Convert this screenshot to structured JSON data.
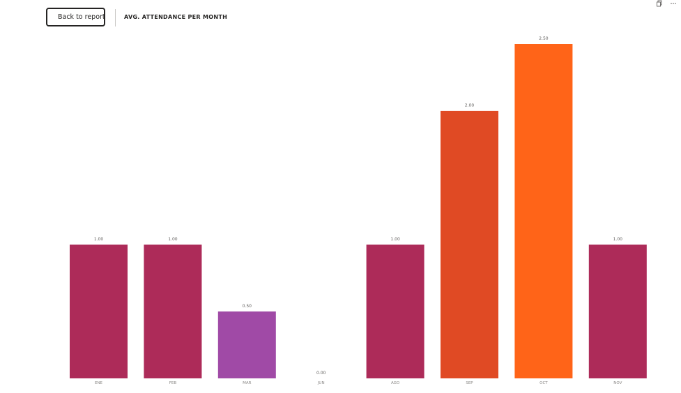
{
  "header": {
    "back_label": "Back to report",
    "title": "AVG. ATTENDANCE PER MONTH"
  },
  "icons": {
    "back": "chevron-left-icon",
    "copy": "copy-icon",
    "more": "more-options-icon"
  },
  "chart_data": {
    "type": "bar",
    "title": "AVG. ATTENDANCE PER MONTH",
    "categories": [
      "ENE",
      "FEB",
      "MAR",
      "JUN",
      "AGO",
      "SEP",
      "OCT",
      "NOV"
    ],
    "values": [
      1.0,
      1.0,
      0.5,
      0.0,
      1.0,
      2.0,
      2.5,
      1.0
    ],
    "data_labels": [
      "1.00",
      "1.00",
      "0.50",
      "0.00",
      "1.00",
      "2.00",
      "2.50",
      "1.00"
    ],
    "colors": [
      "#ad2b59",
      "#ad2b59",
      "#a04aa6",
      "#ad2b59",
      "#ad2b59",
      "#e04a24",
      "#ff6418",
      "#ad2b59"
    ],
    "ylim": [
      0,
      2.5
    ],
    "xlabel": "",
    "ylabel": "",
    "grid": false,
    "legend": "none"
  }
}
